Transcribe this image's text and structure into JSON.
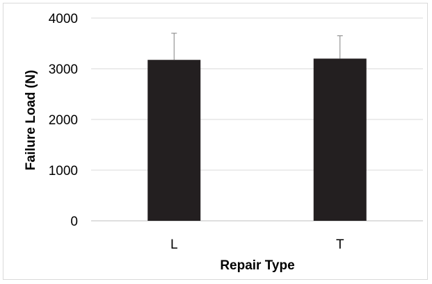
{
  "chart_data": {
    "type": "bar",
    "categories": [
      "L",
      "T"
    ],
    "values": [
      3175,
      3200
    ],
    "error_plus": [
      525,
      450
    ],
    "xlabel": "Repair Type",
    "ylabel": "Failure Load (N)",
    "ylim": [
      0,
      4000
    ],
    "yticks": [
      0,
      1000,
      2000,
      3000,
      4000
    ],
    "yticklabels": [
      "0",
      "1000",
      "2000",
      "3000",
      "4000"
    ],
    "grid": true,
    "legend": "none",
    "bar_color": "#231f20",
    "grid_color": "#d9d9d9",
    "axis_color": "#bfbfbf",
    "error_bar_color": "#808080"
  }
}
